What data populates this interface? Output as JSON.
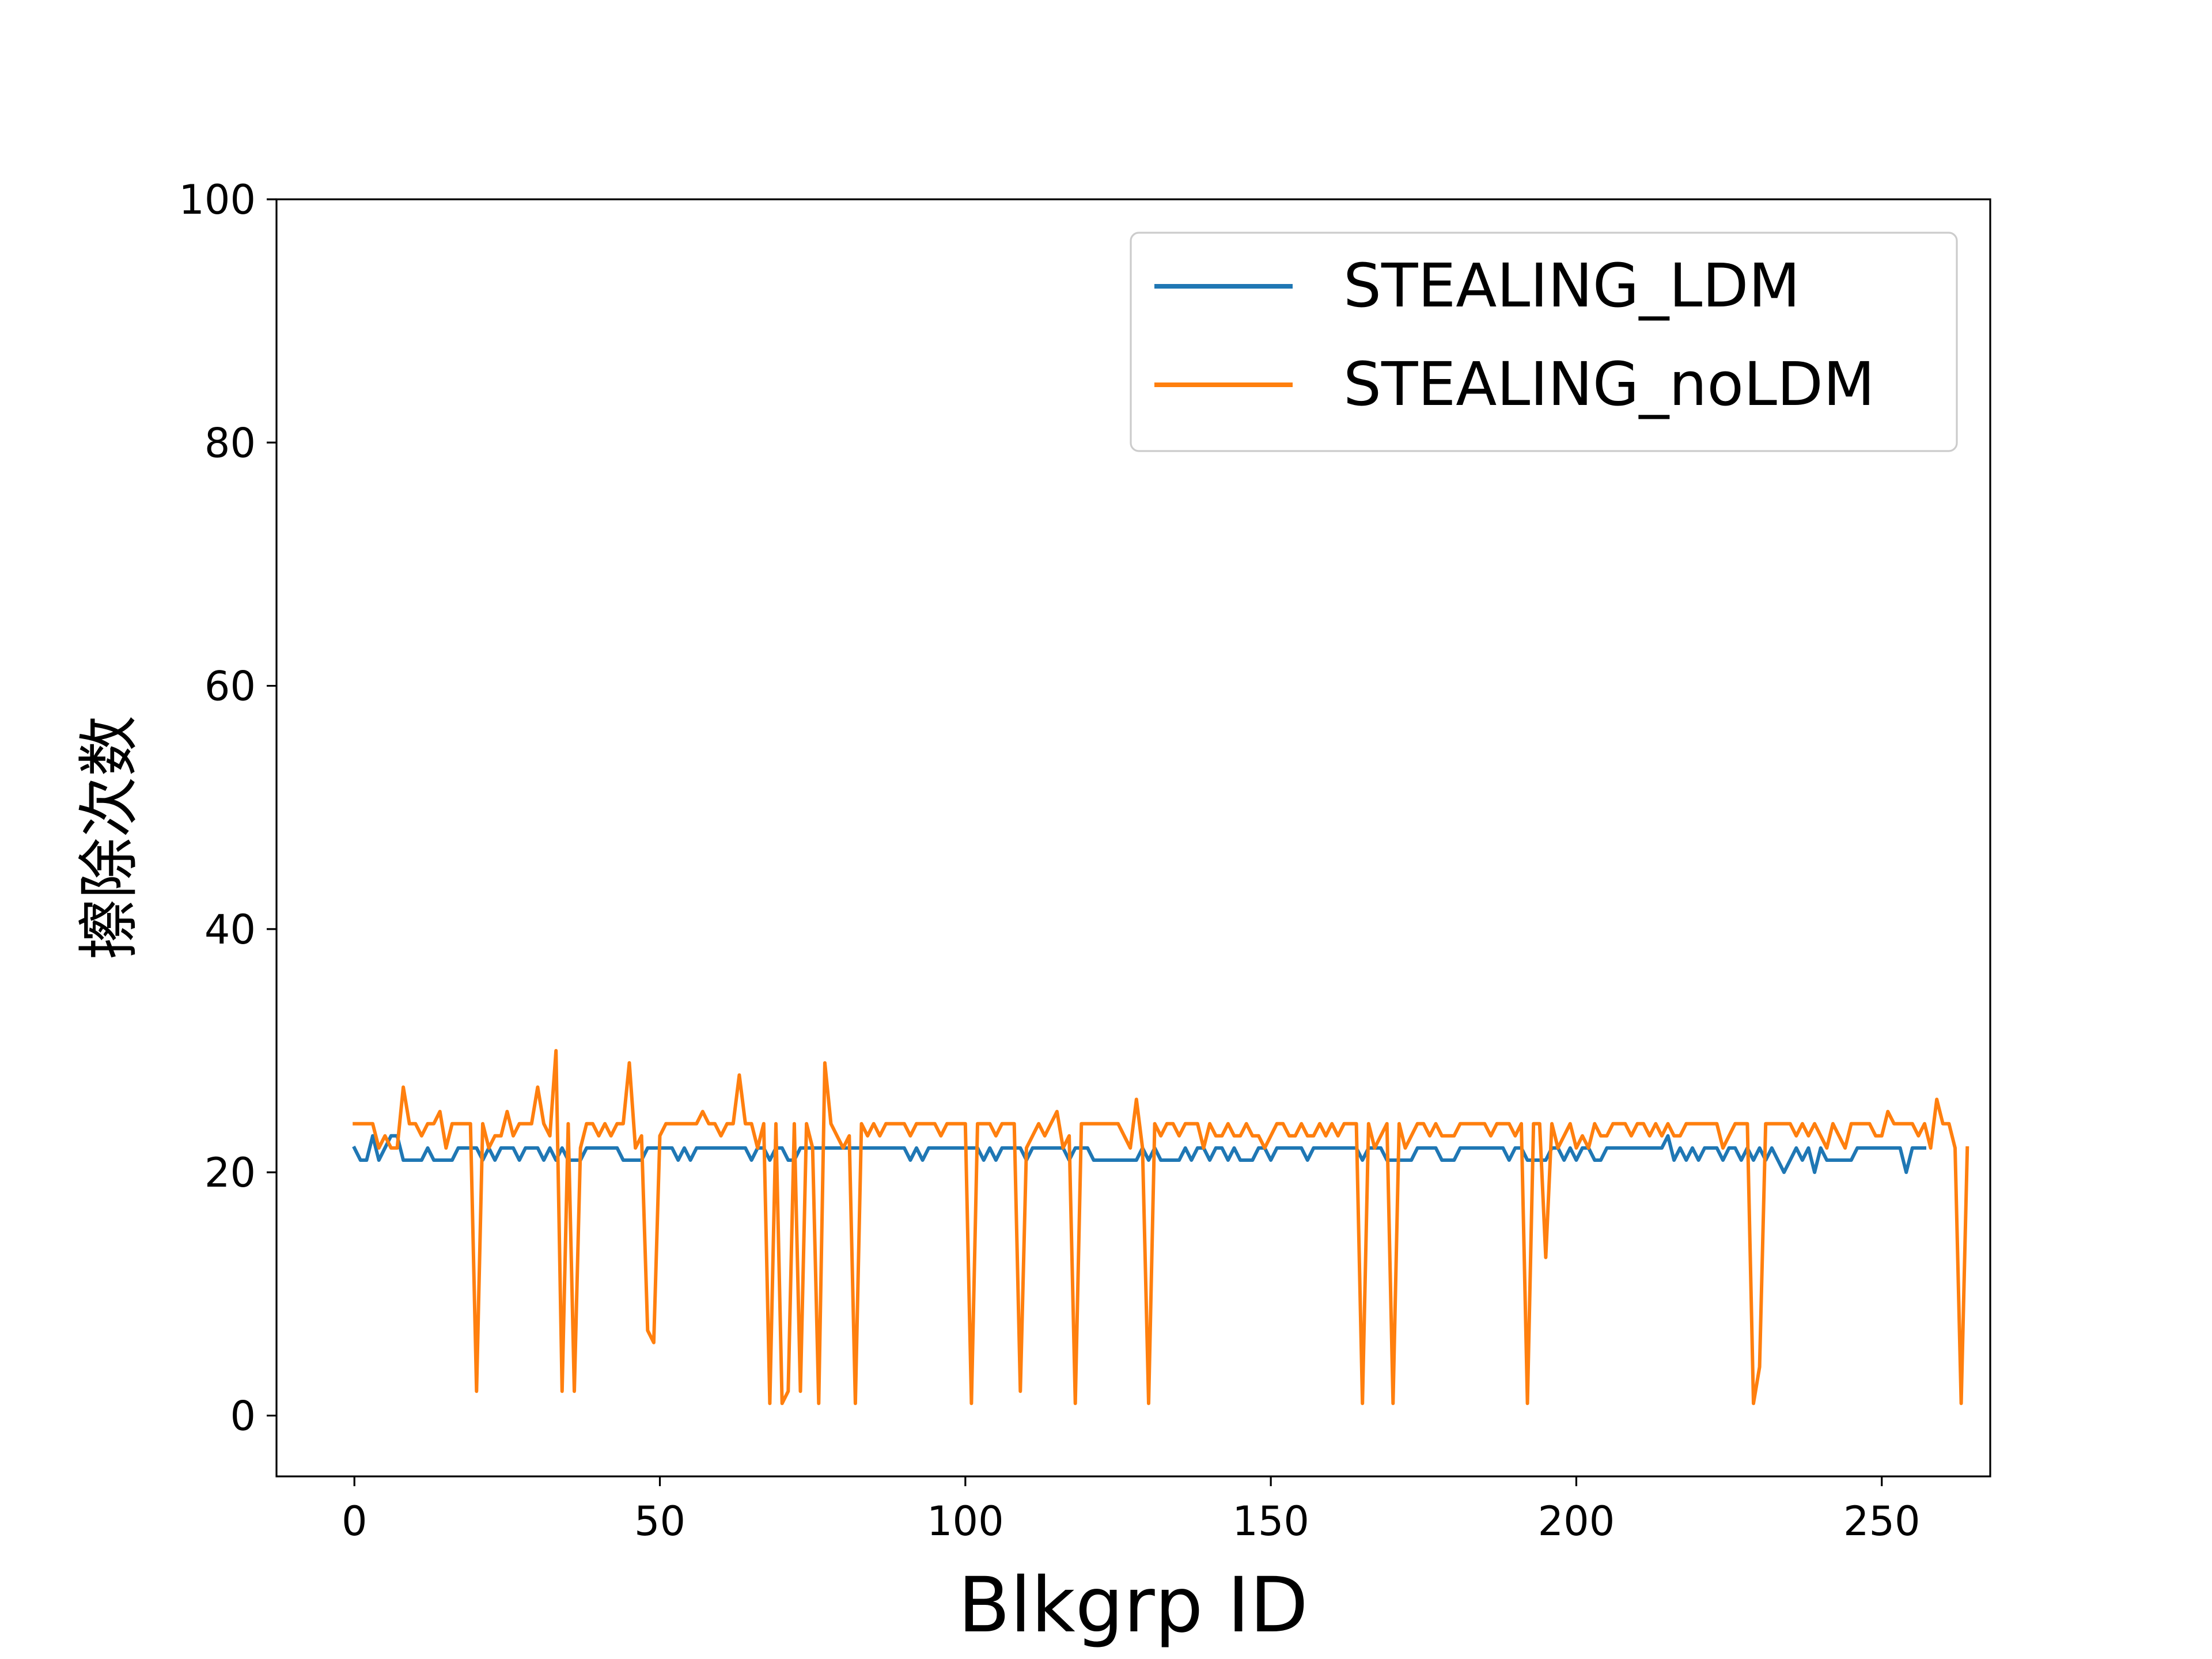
{
  "chart_data": {
    "type": "line",
    "xlabel": "Blkgrp ID",
    "ylabel": "擦除次数",
    "xlim": [
      -12.75,
      267.75
    ],
    "ylim": [
      -5,
      100
    ],
    "xticks": [
      0,
      50,
      100,
      150,
      200,
      250
    ],
    "yticks": [
      0,
      20,
      40,
      60,
      80,
      100
    ],
    "xtick_labels": [
      "0",
      "50",
      "100",
      "150",
      "200",
      "250"
    ],
    "ytick_labels": [
      "0",
      "20",
      "40",
      "60",
      "80",
      "100"
    ],
    "grid": false,
    "legend": "top-right",
    "series": [
      {
        "name": "STEALING_LDM",
        "color": "#1f77b4",
        "y": [
          22,
          21,
          21,
          23,
          21,
          22,
          23,
          23,
          21,
          21,
          21,
          21,
          22,
          21,
          21,
          21,
          21,
          22,
          22,
          22,
          22,
          21,
          22,
          21,
          22,
          22,
          22,
          21,
          22,
          22,
          22,
          21,
          22,
          21,
          22,
          21,
          21,
          21,
          22,
          22,
          22,
          22,
          22,
          22,
          21,
          21,
          21,
          21,
          22,
          22,
          22,
          22,
          22,
          21,
          22,
          21,
          22,
          22,
          22,
          22,
          22,
          22,
          22,
          22,
          22,
          21,
          22,
          22,
          21,
          22,
          22,
          21,
          21,
          22,
          22,
          22,
          22,
          22,
          22,
          22,
          22,
          22,
          22,
          22,
          22,
          22,
          22,
          22,
          22,
          22,
          22,
          21,
          22,
          21,
          22,
          22,
          22,
          22,
          22,
          22,
          22,
          22,
          22,
          21,
          22,
          21,
          22,
          22,
          22,
          22,
          21,
          22,
          22,
          22,
          22,
          22,
          22,
          21,
          22,
          22,
          22,
          21,
          21,
          21,
          21,
          21,
          21,
          21,
          21,
          22,
          21,
          22,
          21,
          21,
          21,
          21,
          22,
          21,
          22,
          22,
          21,
          22,
          22,
          21,
          22,
          21,
          21,
          21,
          22,
          22,
          21,
          22,
          22,
          22,
          22,
          22,
          21,
          22,
          22,
          22,
          22,
          22,
          22,
          22,
          22,
          21,
          22,
          22,
          22,
          21,
          21,
          21,
          21,
          21,
          22,
          22,
          22,
          22,
          21,
          21,
          21,
          22,
          22,
          22,
          22,
          22,
          22,
          22,
          22,
          21,
          22,
          22,
          21,
          21,
          21,
          21,
          22,
          22,
          21,
          22,
          21,
          22,
          22,
          21,
          21,
          22,
          22,
          22,
          22,
          22,
          22,
          22,
          22,
          22,
          22,
          23,
          21,
          22,
          21,
          22,
          21,
          22,
          22,
          22,
          21,
          22,
          22,
          21,
          22,
          21,
          22,
          21,
          22,
          21,
          20,
          21,
          22,
          21,
          22,
          20,
          22,
          21,
          21,
          21,
          21,
          21,
          22,
          22,
          22,
          22,
          22,
          22,
          22,
          22,
          20,
          22,
          22,
          22
        ]
      },
      {
        "name": "STEALING_noLDM",
        "color": "#ff7f0e",
        "y": [
          24,
          24,
          24,
          24,
          22,
          23,
          22,
          22,
          27,
          24,
          24,
          23,
          24,
          24,
          25,
          22,
          24,
          24,
          24,
          24,
          2,
          24,
          22,
          23,
          23,
          25,
          23,
          24,
          24,
          24,
          27,
          24,
          23,
          30,
          2,
          24,
          2,
          22,
          24,
          24,
          23,
          24,
          23,
          24,
          24,
          29,
          22,
          23,
          7,
          6,
          23,
          24,
          24,
          24,
          24,
          24,
          24,
          25,
          24,
          24,
          23,
          24,
          24,
          28,
          24,
          24,
          22,
          24,
          1,
          24,
          1,
          2,
          24,
          2,
          24,
          22,
          1,
          29,
          24,
          23,
          22,
          23,
          1,
          24,
          23,
          24,
          23,
          24,
          24,
          24,
          24,
          23,
          24,
          24,
          24,
          24,
          23,
          24,
          24,
          24,
          24,
          1,
          24,
          24,
          24,
          23,
          24,
          24,
          24,
          2,
          22,
          23,
          24,
          23,
          24,
          25,
          22,
          23,
          1,
          24,
          24,
          24,
          24,
          24,
          24,
          24,
          23,
          22,
          26,
          22,
          1,
          24,
          23,
          24,
          24,
          23,
          24,
          24,
          24,
          22,
          24,
          23,
          23,
          24,
          23,
          23,
          24,
          23,
          23,
          22,
          23,
          24,
          24,
          23,
          23,
          24,
          23,
          23,
          24,
          23,
          24,
          23,
          24,
          24,
          24,
          1,
          24,
          22,
          23,
          24,
          1,
          24,
          22,
          23,
          24,
          24,
          23,
          24,
          23,
          23,
          23,
          24,
          24,
          24,
          24,
          24,
          23,
          24,
          24,
          24,
          23,
          24,
          1,
          24,
          24,
          13,
          24,
          22,
          23,
          24,
          22,
          23,
          22,
          24,
          23,
          23,
          24,
          24,
          24,
          23,
          24,
          24,
          23,
          24,
          23,
          24,
          23,
          23,
          24,
          24,
          24,
          24,
          24,
          24,
          22,
          23,
          24,
          24,
          24,
          1,
          4,
          24,
          24,
          24,
          24,
          24,
          23,
          24,
          23,
          24,
          23,
          22,
          24,
          23,
          22,
          24,
          24,
          24,
          24,
          23,
          23,
          25,
          24,
          24,
          24,
          24,
          23,
          24,
          22,
          26,
          24,
          24,
          22,
          1,
          22
        ]
      }
    ]
  }
}
